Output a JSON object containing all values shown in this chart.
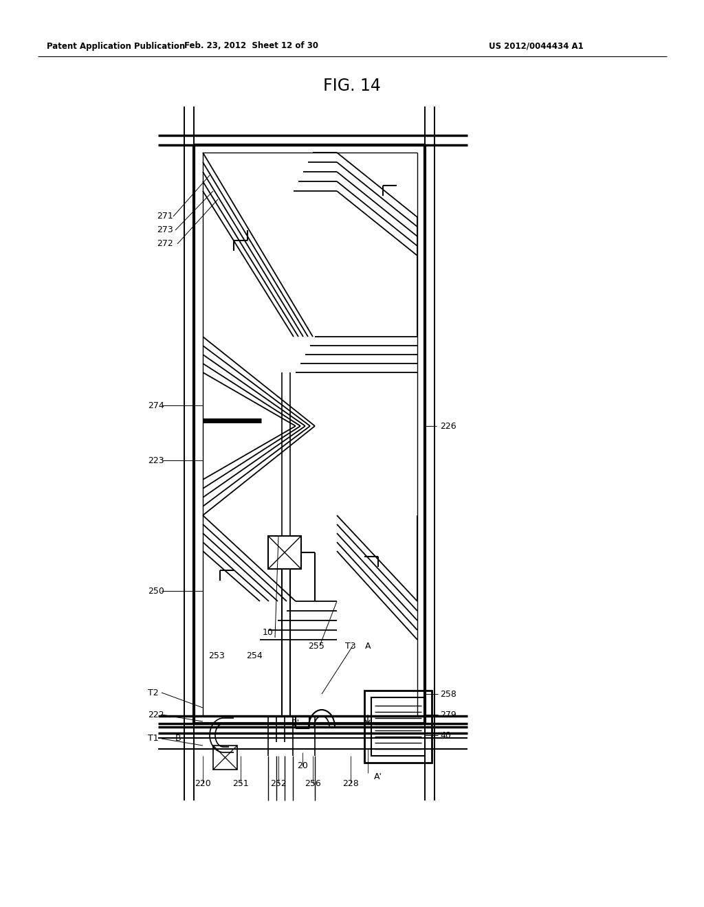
{
  "title": "FIG. 14",
  "header_left": "Patent Application Publication",
  "header_mid": "Feb. 23, 2012  Sheet 12 of 30",
  "header_right": "US 2012/0044434 A1",
  "bg_color": "#ffffff",
  "fig_width": 10.24,
  "fig_height": 13.2,
  "dpi": 100
}
